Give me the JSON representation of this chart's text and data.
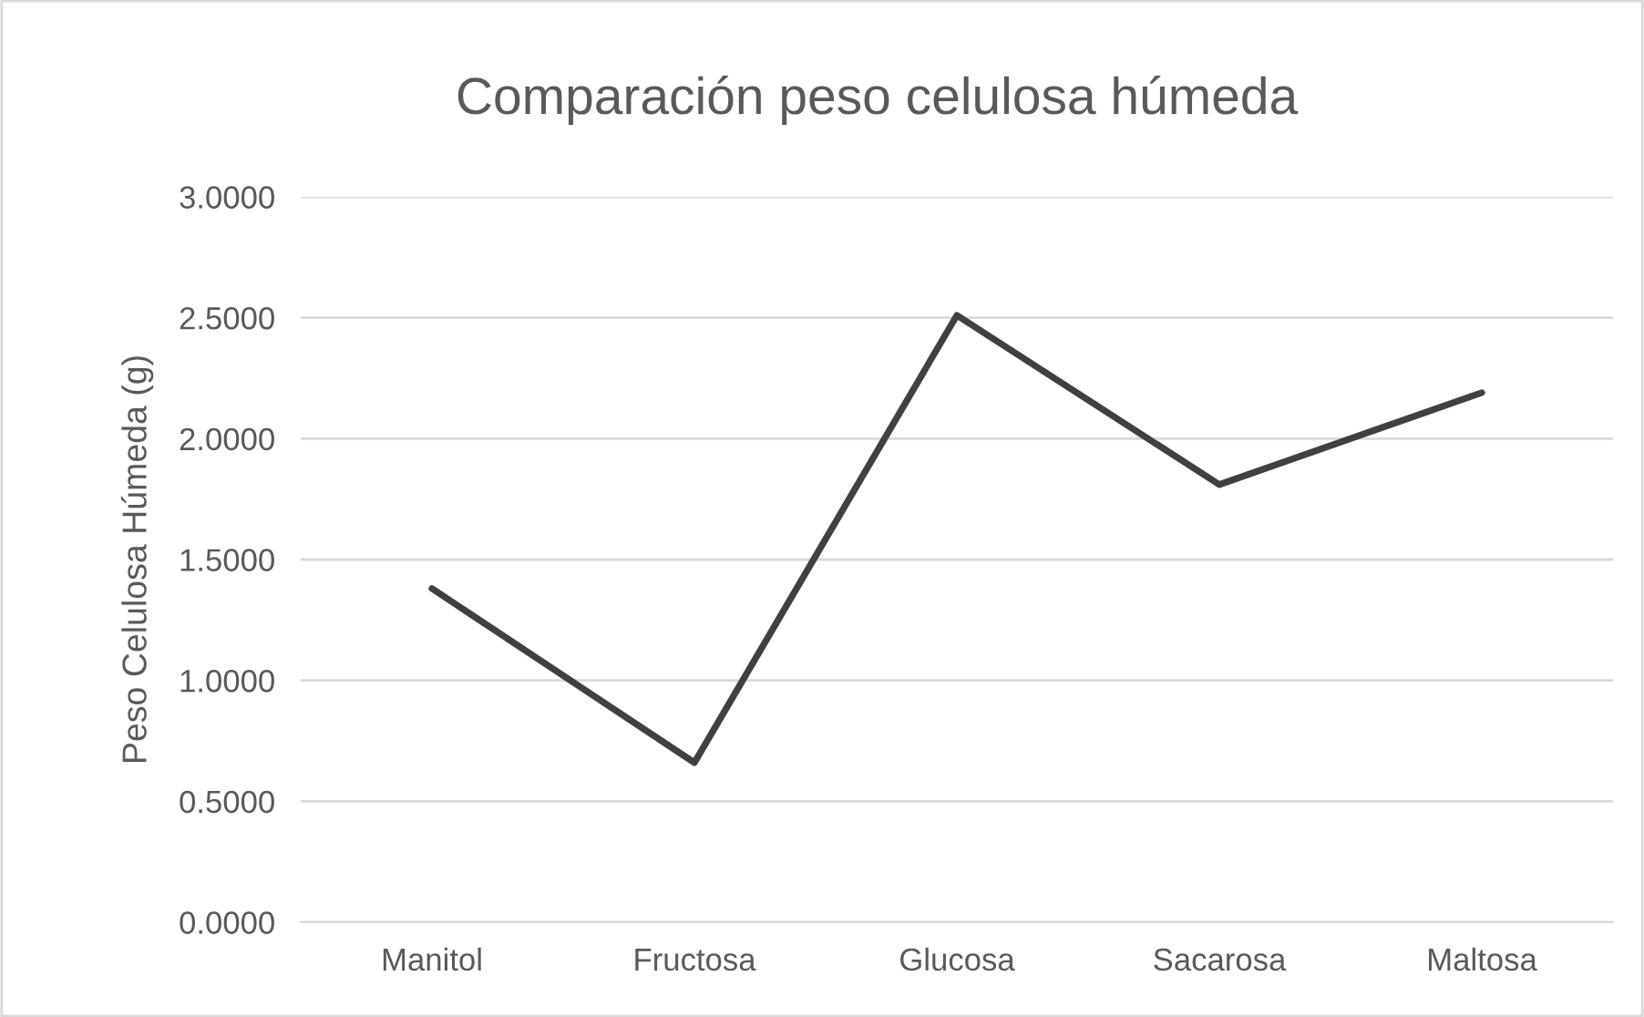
{
  "chart_data": {
    "type": "line",
    "title": "Comparación peso celulosa húmeda",
    "ylabel": "Peso Celulosa Húmeda (g)",
    "categories": [
      "Manitol",
      "Fructosa",
      "Glucosa",
      "Sacarosa",
      "Maltosa"
    ],
    "series": [
      {
        "color": "#404040",
        "values": [
          1.38,
          0.66,
          2.51,
          1.81,
          2.19
        ]
      }
    ],
    "ylim": [
      0,
      3
    ],
    "yticks": [
      {
        "value": 0,
        "label": "0.0000"
      },
      {
        "value": 0.5,
        "label": "0.5000"
      },
      {
        "value": 1,
        "label": "1.0000"
      },
      {
        "value": 1.5,
        "label": "1.5000"
      },
      {
        "value": 2,
        "label": "2.0000"
      },
      {
        "value": 2.5,
        "label": "2.5000"
      },
      {
        "value": 3,
        "label": "3.0000"
      }
    ],
    "grid": "y",
    "legend": false,
    "marker": "none",
    "line_style": "solid"
  }
}
